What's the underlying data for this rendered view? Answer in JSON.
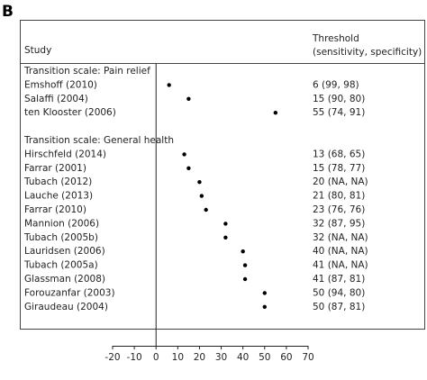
{
  "chart_data": {
    "type": "forest",
    "panel_label": "B",
    "study_header": "Study",
    "threshold_header": "Threshold",
    "threshold_subheader": "(sensitivity, specificity)",
    "color": "#000000",
    "groups": [
      {
        "name": "Transition scale: Pain relief",
        "categories": [
          "Emshoff (2010)",
          "Salaffi (2004)",
          "ten Klooster (2006)"
        ],
        "values": [
          6,
          15,
          55
        ],
        "value_labels": [
          "6 (99, 98)",
          "15 (90, 80)",
          "55 (74, 91)"
        ]
      },
      {
        "name": "Transition scale: General health",
        "categories": [
          "Hirschfeld (2014)",
          "Farrar (2001)",
          "Tubach (2012)",
          "Lauche (2013)",
          "Farrar (2010)",
          "Mannion (2006)",
          "Tubach (2005b)",
          "Lauridsen (2006)",
          "Tubach (2005a)",
          "Glassman (2008)",
          "Forouzanfar (2003)",
          "Giraudeau (2004)"
        ],
        "values": [
          13,
          15,
          20,
          21,
          23,
          32,
          32,
          40,
          41,
          41,
          50,
          50
        ],
        "value_labels": [
          "13 (68, 65)",
          "15 (78, 77)",
          "20 (NA, NA)",
          "21 (80, 81)",
          "23 (76, 76)",
          "32 (87, 95)",
          "32 (NA, NA)",
          "40 (NA, NA)",
          "41 (NA, NA)",
          "41 (87, 81)",
          "50 (94, 80)",
          "50 (87, 81)"
        ]
      }
    ],
    "xlim": [
      -20,
      70
    ],
    "xticks": [
      -20,
      -10,
      0,
      10,
      20,
      30,
      40,
      50,
      60,
      70
    ]
  }
}
